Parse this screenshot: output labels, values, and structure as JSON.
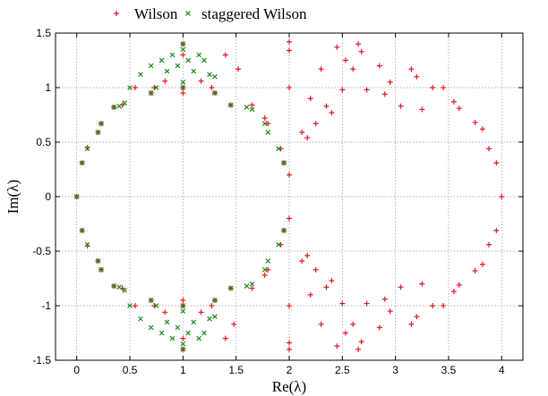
{
  "chart_data": {
    "type": "scatter",
    "title": "",
    "xlabel": "Re(λ)",
    "ylabel": "Im(λ)",
    "xlim": [
      -0.2,
      4.2
    ],
    "ylim": [
      -1.5,
      1.5
    ],
    "xticks": [
      0,
      0.5,
      1,
      1.5,
      2,
      2.5,
      3,
      3.5,
      4
    ],
    "xtick_labels": [
      "0",
      "0.5",
      "1",
      "1.5",
      "2",
      "2.5",
      "3",
      "3.5",
      "4"
    ],
    "yticks": [
      -1.5,
      -1,
      -0.5,
      0,
      0.5,
      1,
      1.5
    ],
    "ytick_labels": [
      "-1.5",
      "-1",
      "-0.5",
      "0",
      "0.5",
      "1",
      "1.5"
    ],
    "grid": true,
    "legend_position": "top-left, outside plot",
    "series": [
      {
        "name": "Wilson",
        "marker": "plus",
        "color": "#e8141c",
        "points": [
          [
            0.0,
            0.0
          ],
          [
            0.05,
            0.31
          ],
          [
            0.1,
            0.45
          ],
          [
            0.2,
            0.59
          ],
          [
            0.23,
            0.67
          ],
          [
            0.35,
            0.82
          ],
          [
            0.43,
            0.84
          ],
          [
            0.55,
            1.0
          ],
          [
            0.7,
            0.95
          ],
          [
            0.73,
            1.0
          ],
          [
            0.83,
            1.06
          ],
          [
            1.0,
            1.0
          ],
          [
            1.0,
            0.95
          ],
          [
            1.0,
            1.3
          ],
          [
            1.0,
            1.4
          ],
          [
            1.17,
            1.06
          ],
          [
            1.27,
            1.0
          ],
          [
            1.3,
            0.95
          ],
          [
            1.45,
            0.84
          ],
          [
            1.65,
            0.84
          ],
          [
            1.77,
            0.72
          ],
          [
            1.8,
            0.67
          ],
          [
            1.92,
            0.44
          ],
          [
            1.95,
            0.31
          ],
          [
            2.0,
            0.2
          ],
          [
            2.0,
            1.0
          ],
          [
            2.0,
            1.42
          ],
          [
            2.0,
            1.34
          ],
          [
            2.12,
            0.59
          ],
          [
            2.17,
            0.54
          ],
          [
            2.2,
            0.9
          ],
          [
            2.25,
            0.67
          ],
          [
            2.3,
            1.17
          ],
          [
            2.35,
            0.83
          ],
          [
            2.4,
            0.77
          ],
          [
            2.5,
            0.98
          ],
          [
            2.53,
            1.25
          ],
          [
            2.6,
            1.17
          ],
          [
            2.65,
            1.4
          ],
          [
            2.68,
            1.33
          ],
          [
            2.73,
            0.98
          ],
          [
            2.85,
            1.2
          ],
          [
            2.9,
            0.94
          ],
          [
            2.95,
            1.05
          ],
          [
            3.05,
            0.83
          ],
          [
            3.15,
            1.17
          ],
          [
            3.2,
            1.1
          ],
          [
            3.25,
            0.8
          ],
          [
            3.35,
            1.0
          ],
          [
            3.45,
            1.0
          ],
          [
            3.55,
            0.87
          ],
          [
            3.6,
            0.81
          ],
          [
            3.75,
            0.68
          ],
          [
            3.82,
            0.62
          ],
          [
            3.88,
            0.44
          ],
          [
            3.95,
            0.31
          ],
          [
            4.0,
            0.0
          ],
          [
            2.0,
            -0.2
          ],
          [
            2.0,
            -1.0
          ],
          [
            2.0,
            -1.4
          ],
          [
            2.0,
            -1.34
          ],
          [
            1.95,
            -0.31
          ],
          [
            1.92,
            -0.44
          ],
          [
            1.8,
            -0.67
          ],
          [
            1.77,
            -0.72
          ],
          [
            1.65,
            -0.84
          ],
          [
            1.45,
            -0.84
          ],
          [
            1.3,
            -0.95
          ],
          [
            1.27,
            -1.0
          ],
          [
            1.17,
            -1.06
          ],
          [
            1.0,
            -1.0
          ],
          [
            1.0,
            -0.95
          ],
          [
            1.0,
            -1.3
          ],
          [
            1.0,
            -1.4
          ],
          [
            0.83,
            -1.06
          ],
          [
            0.73,
            -1.0
          ],
          [
            0.7,
            -0.95
          ],
          [
            0.55,
            -1.0
          ],
          [
            0.43,
            -0.84
          ],
          [
            0.35,
            -0.82
          ],
          [
            0.23,
            -0.67
          ],
          [
            0.2,
            -0.59
          ],
          [
            0.1,
            -0.45
          ],
          [
            0.05,
            -0.31
          ],
          [
            2.12,
            -0.59
          ],
          [
            2.17,
            -0.54
          ],
          [
            2.2,
            -0.9
          ],
          [
            2.25,
            -0.67
          ],
          [
            2.3,
            -1.17
          ],
          [
            2.35,
            -0.83
          ],
          [
            2.4,
            -0.77
          ],
          [
            2.5,
            -0.98
          ],
          [
            2.53,
            -1.25
          ],
          [
            2.6,
            -1.17
          ],
          [
            2.65,
            -1.4
          ],
          [
            2.68,
            -1.33
          ],
          [
            2.73,
            -0.98
          ],
          [
            2.85,
            -1.2
          ],
          [
            2.9,
            -0.94
          ],
          [
            2.95,
            -1.05
          ],
          [
            3.05,
            -0.83
          ],
          [
            3.15,
            -1.17
          ],
          [
            3.2,
            -1.1
          ],
          [
            3.25,
            -0.8
          ],
          [
            3.35,
            -1.0
          ],
          [
            3.45,
            -1.0
          ],
          [
            3.55,
            -0.87
          ],
          [
            3.6,
            -0.81
          ],
          [
            3.75,
            -0.68
          ],
          [
            3.82,
            -0.62
          ],
          [
            3.88,
            -0.44
          ],
          [
            3.95,
            -0.31
          ],
          [
            1.48,
            -1.17
          ],
          [
            1.4,
            -1.3
          ],
          [
            1.52,
            1.17
          ],
          [
            1.4,
            1.3
          ],
          [
            2.45,
            -1.37
          ],
          [
            2.45,
            1.37
          ]
        ]
      },
      {
        "name": "staggered Wilson",
        "marker": "cross",
        "color": "#1a8a1a",
        "points": [
          [
            0.0,
            0.0
          ],
          [
            0.05,
            0.31
          ],
          [
            0.1,
            0.44
          ],
          [
            0.2,
            0.59
          ],
          [
            0.23,
            0.67
          ],
          [
            0.35,
            0.82
          ],
          [
            0.4,
            0.83
          ],
          [
            0.45,
            0.86
          ],
          [
            0.5,
            1.0
          ],
          [
            0.6,
            1.12
          ],
          [
            0.7,
            1.2
          ],
          [
            0.7,
            0.95
          ],
          [
            0.75,
            1.0
          ],
          [
            0.8,
            1.25
          ],
          [
            0.85,
            1.15
          ],
          [
            0.9,
            1.3
          ],
          [
            0.95,
            1.2
          ],
          [
            1.0,
            1.4
          ],
          [
            1.0,
            1.35
          ],
          [
            1.0,
            1.0
          ],
          [
            1.0,
            1.05
          ],
          [
            1.05,
            1.25
          ],
          [
            1.1,
            1.15
          ],
          [
            1.15,
            1.3
          ],
          [
            1.2,
            1.25
          ],
          [
            1.25,
            1.12
          ],
          [
            1.3,
            0.95
          ],
          [
            1.3,
            1.1
          ],
          [
            1.45,
            0.84
          ],
          [
            1.6,
            0.82
          ],
          [
            1.65,
            0.8
          ],
          [
            1.77,
            0.67
          ],
          [
            1.8,
            0.59
          ],
          [
            1.9,
            0.44
          ],
          [
            1.95,
            0.31
          ],
          [
            0.05,
            -0.31
          ],
          [
            0.1,
            -0.44
          ],
          [
            0.2,
            -0.59
          ],
          [
            0.23,
            -0.67
          ],
          [
            0.35,
            -0.82
          ],
          [
            0.4,
            -0.83
          ],
          [
            0.45,
            -0.86
          ],
          [
            0.5,
            -1.0
          ],
          [
            0.6,
            -1.12
          ],
          [
            0.7,
            -1.2
          ],
          [
            0.7,
            -0.95
          ],
          [
            0.75,
            -1.0
          ],
          [
            0.8,
            -1.25
          ],
          [
            0.85,
            -1.15
          ],
          [
            0.9,
            -1.3
          ],
          [
            0.95,
            -1.2
          ],
          [
            1.0,
            -1.4
          ],
          [
            1.0,
            -1.35
          ],
          [
            1.0,
            -1.0
          ],
          [
            1.0,
            -1.05
          ],
          [
            1.05,
            -1.25
          ],
          [
            1.1,
            -1.15
          ],
          [
            1.15,
            -1.3
          ],
          [
            1.2,
            -1.25
          ],
          [
            1.25,
            -1.12
          ],
          [
            1.3,
            -0.95
          ],
          [
            1.3,
            -1.1
          ],
          [
            1.45,
            -0.84
          ],
          [
            1.6,
            -0.82
          ],
          [
            1.65,
            -0.8
          ],
          [
            1.77,
            -0.67
          ],
          [
            1.8,
            -0.59
          ],
          [
            1.9,
            -0.44
          ],
          [
            1.95,
            -0.31
          ]
        ]
      }
    ]
  }
}
